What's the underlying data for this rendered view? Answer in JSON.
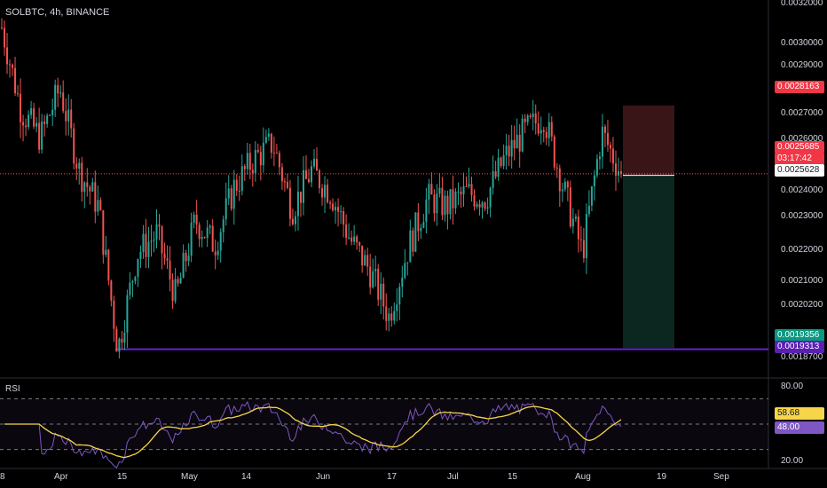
{
  "header": {
    "title": "SOLBTC, 4h, BINANCE"
  },
  "price_axis": {
    "labels": [
      "0.0032000",
      "0.0030000",
      "0.0029000",
      "0.0027000",
      "0.0026000",
      "0.0024000",
      "0.0023000",
      "0.0022000",
      "0.0021000",
      "0.0020200",
      "0.0018700"
    ],
    "badges": {
      "target": "0.0028163",
      "current": "0.0025685",
      "countdown": "03:17:42",
      "entry": "0.0025628",
      "stop": "0.0019356",
      "support": "0.0019313"
    }
  },
  "time_axis": [
    "8",
    "Apr",
    "15",
    "May",
    "14",
    "Jun",
    "17",
    "Jul",
    "15",
    "Aug",
    "19",
    "Sep"
  ],
  "rsi": {
    "title": "RSI",
    "axis_labels": [
      "80.00",
      "20.00"
    ],
    "badges": {
      "ma": "58.68",
      "rsi": "48.00"
    }
  },
  "colors": {
    "up": "#26a69a",
    "down": "#ef5350",
    "rsi_line": "#7e57c2",
    "rsi_ma": "#f7d54a",
    "support": "#6a1fd3",
    "target_zone": "#3a1518",
    "stop_zone": "#0b2720"
  },
  "chart_data": {
    "type": "candlestick",
    "symbol": "SOLBTC",
    "interval": "4h",
    "exchange": "BINANCE",
    "x_ticks": [
      "8",
      "Apr",
      "15",
      "May",
      "14",
      "Jun",
      "17",
      "Jul",
      "15",
      "Aug",
      "19",
      "Sep"
    ],
    "y_range": [
      0.00183,
      0.0032
    ],
    "key_levels": {
      "current": 0.0025685,
      "target": 0.0028163,
      "entry": 0.0025628,
      "stop": 0.0019356,
      "support": 0.0019313
    },
    "close_path": [
      {
        "t": "8",
        "close": 0.0031
      },
      {
        "t": "",
        "close": 0.0028
      },
      {
        "t": "",
        "close": 0.0027
      },
      {
        "t": "Apr",
        "close": 0.00288
      },
      {
        "t": "",
        "close": 0.00258
      },
      {
        "t": "",
        "close": 0.00245
      },
      {
        "t": "15",
        "close": 0.00193
      },
      {
        "t": "",
        "close": 0.00228
      },
      {
        "t": "",
        "close": 0.00235
      },
      {
        "t": "",
        "close": 0.00212
      },
      {
        "t": "May",
        "close": 0.0024
      },
      {
        "t": "",
        "close": 0.00231
      },
      {
        "t": "",
        "close": 0.00252
      },
      {
        "t": "14",
        "close": 0.00262
      },
      {
        "t": "",
        "close": 0.00268
      },
      {
        "t": "",
        "close": 0.00244
      },
      {
        "t": "",
        "close": 0.00258
      },
      {
        "t": "Jun",
        "close": 0.0025
      },
      {
        "t": "",
        "close": 0.00233
      },
      {
        "t": "",
        "close": 0.00222
      },
      {
        "t": "17",
        "close": 0.00205
      },
      {
        "t": "",
        "close": 0.0023
      },
      {
        "t": "",
        "close": 0.00248
      },
      {
        "t": "Jul",
        "close": 0.00245
      },
      {
        "t": "",
        "close": 0.0025
      },
      {
        "t": "15",
        "close": 0.00248
      },
      {
        "t": "",
        "close": 0.00263
      },
      {
        "t": "",
        "close": 0.00272
      },
      {
        "t": "",
        "close": 0.00278
      },
      {
        "t": "",
        "close": 0.00252
      },
      {
        "t": "Aug",
        "close": 0.00228
      },
      {
        "t": "",
        "close": 0.00272
      },
      {
        "t": "",
        "close": 0.0025685
      }
    ],
    "rsi": {
      "levels": [
        70,
        50,
        30
      ],
      "range": [
        15,
        85
      ],
      "last": 48.0,
      "ma_last": 58.68
    }
  }
}
